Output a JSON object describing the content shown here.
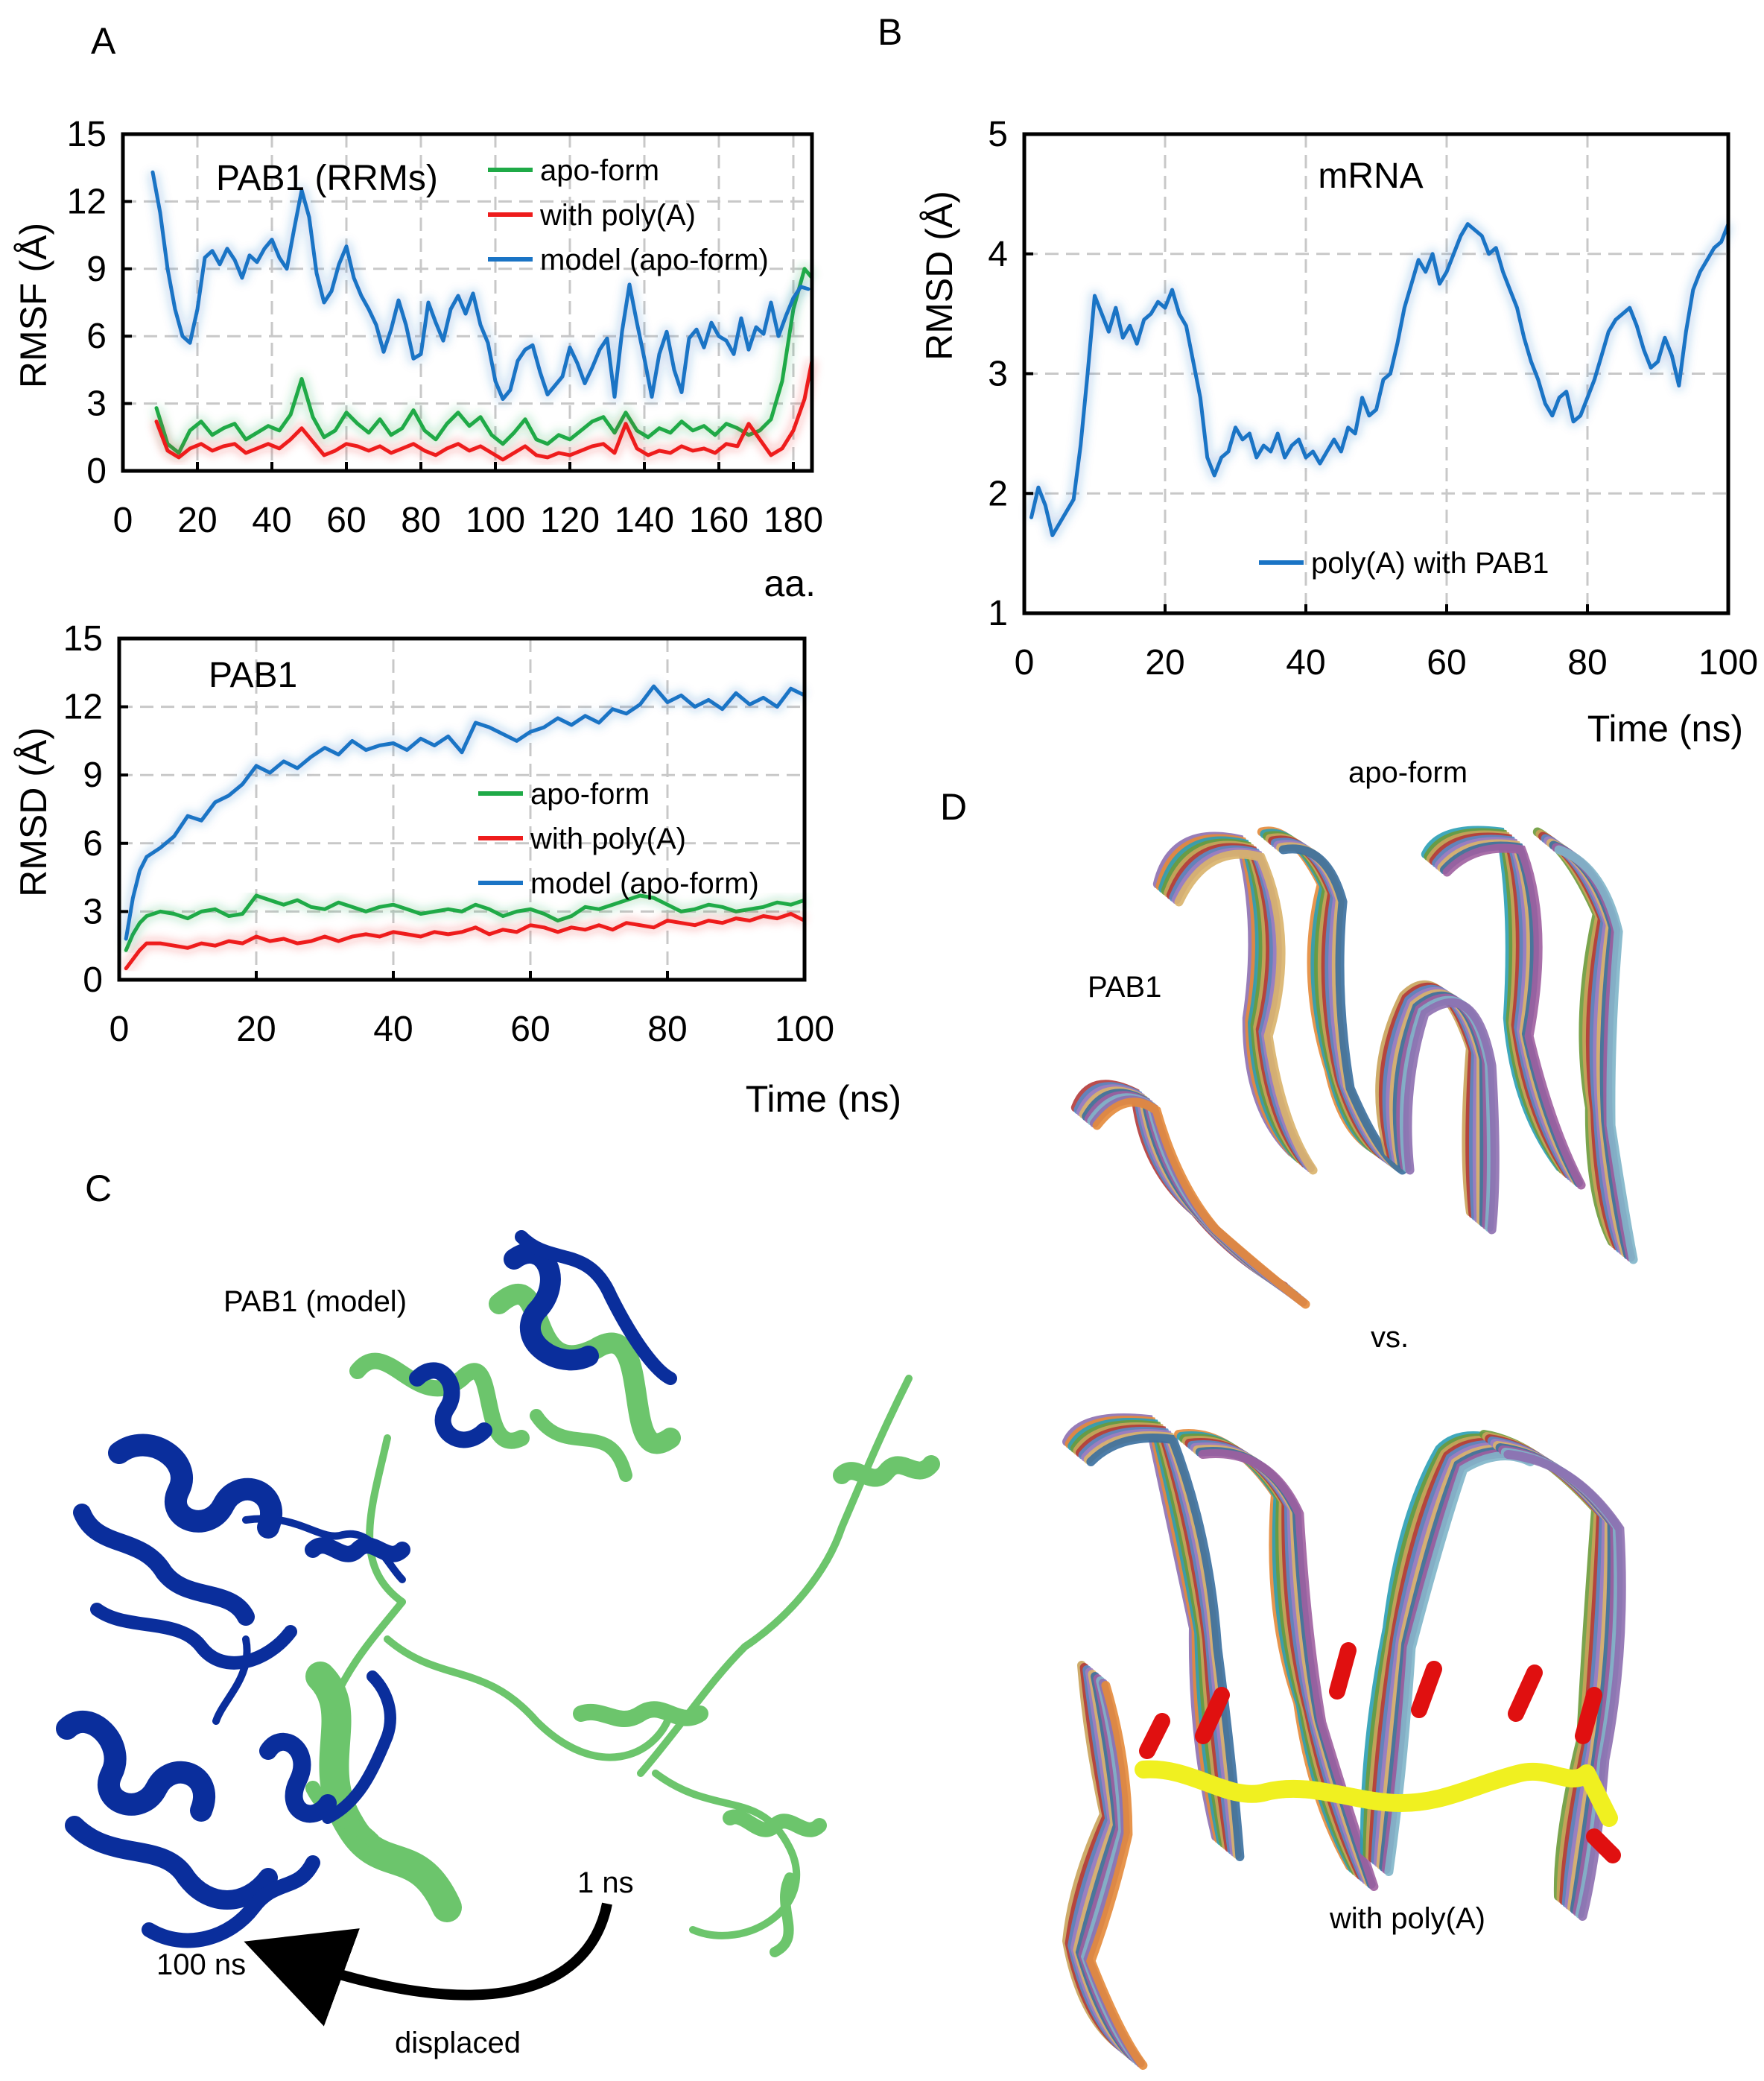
{
  "panels": {
    "A": {
      "letter": "A"
    },
    "B": {
      "letter": "B"
    },
    "C": {
      "letter": "C",
      "structure_label": "PAB1 (model)",
      "time_start": "1 ns",
      "time_end": "100 ns",
      "arrow_label": "displaced",
      "colors": {
        "start": "#6cc56c",
        "end": "#0a2e9c"
      }
    },
    "D": {
      "letter": "D",
      "top_label": "apo-form",
      "protein_label": "PAB1",
      "vs_label": "vs.",
      "bottom_label": "with poly(A)",
      "ligand_colors": {
        "backbone": "#f0f020",
        "bases": "#e01010"
      }
    }
  },
  "chart_data": [
    {
      "id": "rmsf",
      "type": "line",
      "title": "PAB1 (RRMs)",
      "xlabel": "aa.",
      "ylabel": "RMSF (Å)",
      "xlim": [
        0,
        185
      ],
      "ylim": [
        0,
        15
      ],
      "xticks": [
        0,
        20,
        40,
        60,
        80,
        100,
        120,
        140,
        160,
        180
      ],
      "yticks": [
        0,
        3,
        6,
        9,
        12,
        15
      ],
      "grid": true,
      "legend": "top-right",
      "series": [
        {
          "name": "apo-form",
          "color": "#1faa47",
          "x": [
            9,
            12,
            15,
            18,
            21,
            24,
            27,
            30,
            33,
            36,
            39,
            42,
            45,
            48,
            51,
            54,
            57,
            60,
            63,
            66,
            69,
            72,
            75,
            78,
            81,
            84,
            87,
            90,
            93,
            96,
            99,
            102,
            105,
            108,
            111,
            114,
            117,
            120,
            123,
            126,
            129,
            132,
            135,
            138,
            141,
            144,
            147,
            150,
            153,
            156,
            159,
            162,
            165,
            168,
            171,
            174,
            177,
            180,
            183,
            185
          ],
          "y": [
            2.8,
            1.2,
            0.8,
            1.8,
            2.2,
            1.6,
            1.9,
            2.1,
            1.4,
            1.7,
            2.0,
            1.8,
            2.5,
            4.1,
            2.4,
            1.5,
            1.8,
            2.6,
            2.1,
            1.7,
            2.3,
            1.6,
            1.9,
            2.7,
            1.8,
            1.4,
            2.1,
            2.6,
            2.0,
            2.4,
            1.6,
            1.2,
            1.7,
            2.3,
            1.4,
            1.2,
            1.6,
            1.4,
            1.8,
            2.2,
            2.4,
            1.7,
            2.6,
            1.8,
            1.5,
            1.9,
            1.7,
            2.2,
            1.8,
            2.0,
            1.6,
            2.1,
            1.9,
            1.6,
            1.8,
            2.3,
            4.0,
            7.2,
            9.0,
            8.6
          ]
        },
        {
          "name": "with poly(A)",
          "color": "#ee1c1c",
          "x": [
            9,
            12,
            15,
            18,
            21,
            24,
            27,
            30,
            33,
            36,
            39,
            42,
            45,
            48,
            51,
            54,
            57,
            60,
            63,
            66,
            69,
            72,
            75,
            78,
            81,
            84,
            87,
            90,
            93,
            96,
            99,
            102,
            105,
            108,
            111,
            114,
            117,
            120,
            123,
            126,
            129,
            132,
            135,
            138,
            141,
            144,
            147,
            150,
            153,
            156,
            159,
            162,
            165,
            168,
            171,
            174,
            177,
            180,
            183,
            185
          ],
          "y": [
            2.2,
            0.9,
            0.6,
            1.0,
            1.2,
            0.9,
            1.1,
            1.2,
            0.8,
            1.0,
            1.2,
            1.0,
            1.4,
            1.9,
            1.3,
            0.7,
            0.9,
            1.2,
            1.1,
            0.9,
            1.1,
            0.8,
            1.0,
            1.2,
            0.9,
            0.7,
            1.0,
            1.2,
            0.9,
            1.1,
            0.8,
            0.5,
            0.8,
            1.1,
            0.7,
            0.6,
            0.8,
            0.7,
            0.9,
            1.1,
            1.2,
            0.8,
            2.1,
            1.0,
            0.7,
            0.9,
            0.8,
            1.1,
            0.9,
            1.0,
            0.8,
            1.2,
            1.1,
            2.1,
            1.4,
            0.7,
            1.0,
            1.8,
            3.2,
            4.9
          ]
        },
        {
          "name": "model (apo-form)",
          "color": "#1a74c5",
          "x": [
            8,
            10,
            12,
            14,
            16,
            18,
            20,
            22,
            24,
            26,
            28,
            30,
            32,
            34,
            36,
            38,
            40,
            42,
            44,
            46,
            48,
            50,
            52,
            54,
            56,
            58,
            60,
            62,
            64,
            66,
            68,
            70,
            72,
            74,
            76,
            78,
            80,
            82,
            84,
            86,
            88,
            90,
            92,
            94,
            96,
            98,
            100,
            102,
            104,
            106,
            108,
            110,
            112,
            114,
            116,
            118,
            120,
            122,
            124,
            126,
            128,
            130,
            132,
            134,
            136,
            138,
            140,
            142,
            144,
            146,
            148,
            150,
            152,
            154,
            156,
            158,
            160,
            162,
            164,
            166,
            168,
            170,
            172,
            174,
            176,
            178,
            180,
            182,
            184
          ],
          "y": [
            13.3,
            11.5,
            9.0,
            7.2,
            6.0,
            5.7,
            7.2,
            9.5,
            9.8,
            9.2,
            9.9,
            9.4,
            8.6,
            9.6,
            9.3,
            9.9,
            10.3,
            9.5,
            9.0,
            10.8,
            12.5,
            11.3,
            8.8,
            7.5,
            8.0,
            9.2,
            10.0,
            8.6,
            7.8,
            7.2,
            6.5,
            5.3,
            6.3,
            7.6,
            6.5,
            5.0,
            5.2,
            7.5,
            6.6,
            5.8,
            7.2,
            7.8,
            7.0,
            7.9,
            6.5,
            5.7,
            4.0,
            3.2,
            3.6,
            4.9,
            5.4,
            5.6,
            4.4,
            3.4,
            3.8,
            4.2,
            5.5,
            4.8,
            3.9,
            4.6,
            5.4,
            5.9,
            3.3,
            6.2,
            8.3,
            6.6,
            5.0,
            3.3,
            5.2,
            6.2,
            4.5,
            3.5,
            5.9,
            6.3,
            5.5,
            6.6,
            6.0,
            5.8,
            5.2,
            6.8,
            5.4,
            6.4,
            6.1,
            7.5,
            6.0,
            6.9,
            7.7,
            8.2,
            8.1
          ]
        }
      ]
    },
    {
      "id": "rmsd-pab1",
      "type": "line",
      "title": "PAB1",
      "xlabel": "Time (ns)",
      "ylabel": "RMSD (Å)",
      "xlim": [
        0,
        100
      ],
      "ylim": [
        0,
        15
      ],
      "xticks": [
        0,
        20,
        40,
        60,
        80,
        100
      ],
      "yticks": [
        0,
        3,
        6,
        9,
        12,
        15
      ],
      "grid": true,
      "legend": "right",
      "series": [
        {
          "name": "apo-form",
          "color": "#1faa47",
          "x": [
            1,
            2,
            3,
            4,
            6,
            8,
            10,
            12,
            14,
            16,
            18,
            20,
            22,
            24,
            26,
            28,
            30,
            32,
            34,
            36,
            38,
            40,
            42,
            44,
            46,
            48,
            50,
            52,
            54,
            56,
            58,
            60,
            62,
            64,
            66,
            68,
            70,
            72,
            74,
            76,
            78,
            80,
            82,
            84,
            86,
            88,
            90,
            92,
            94,
            96,
            98,
            100
          ],
          "y": [
            1.3,
            2.0,
            2.5,
            2.8,
            3.0,
            2.9,
            2.7,
            3.0,
            3.1,
            2.8,
            2.9,
            3.7,
            3.5,
            3.3,
            3.5,
            3.2,
            3.1,
            3.4,
            3.2,
            3.0,
            3.2,
            3.3,
            3.1,
            2.9,
            3.0,
            3.1,
            3.0,
            3.3,
            3.1,
            2.8,
            3.0,
            3.1,
            2.9,
            2.6,
            2.8,
            3.2,
            3.1,
            3.3,
            3.5,
            3.7,
            3.6,
            3.3,
            3.0,
            3.1,
            3.3,
            3.2,
            3.0,
            3.1,
            3.2,
            3.4,
            3.3,
            3.5
          ]
        },
        {
          "name": "with poly(A)",
          "color": "#ee1c1c",
          "x": [
            1,
            2,
            3,
            4,
            6,
            8,
            10,
            12,
            14,
            16,
            18,
            20,
            22,
            24,
            26,
            28,
            30,
            32,
            34,
            36,
            38,
            40,
            42,
            44,
            46,
            48,
            50,
            52,
            54,
            56,
            58,
            60,
            62,
            64,
            66,
            68,
            70,
            72,
            74,
            76,
            78,
            80,
            82,
            84,
            86,
            88,
            90,
            92,
            94,
            96,
            98,
            100
          ],
          "y": [
            0.5,
            0.9,
            1.3,
            1.6,
            1.6,
            1.5,
            1.4,
            1.6,
            1.5,
            1.7,
            1.6,
            1.9,
            1.7,
            1.8,
            1.6,
            1.7,
            1.9,
            1.7,
            1.9,
            2.0,
            1.9,
            2.1,
            2.0,
            1.9,
            2.1,
            2.0,
            2.1,
            2.3,
            2.0,
            2.2,
            2.1,
            2.4,
            2.3,
            2.1,
            2.3,
            2.2,
            2.4,
            2.2,
            2.5,
            2.4,
            2.3,
            2.6,
            2.5,
            2.4,
            2.6,
            2.5,
            2.7,
            2.6,
            2.8,
            2.7,
            2.9,
            2.6
          ]
        },
        {
          "name": "model (apo-form)",
          "color": "#1a74c5",
          "x": [
            1,
            2,
            3,
            4,
            6,
            8,
            10,
            12,
            14,
            16,
            18,
            20,
            22,
            24,
            26,
            28,
            30,
            32,
            34,
            36,
            38,
            40,
            42,
            44,
            46,
            48,
            50,
            52,
            54,
            56,
            58,
            60,
            62,
            64,
            66,
            68,
            70,
            72,
            74,
            76,
            78,
            80,
            82,
            84,
            86,
            88,
            90,
            92,
            94,
            96,
            98,
            100
          ],
          "y": [
            1.8,
            3.6,
            4.8,
            5.4,
            5.8,
            6.3,
            7.2,
            7.0,
            7.8,
            8.1,
            8.6,
            9.4,
            9.1,
            9.6,
            9.3,
            9.8,
            10.2,
            9.9,
            10.5,
            10.1,
            10.3,
            10.4,
            10.1,
            10.6,
            10.3,
            10.7,
            10.0,
            11.3,
            11.1,
            10.8,
            10.5,
            10.9,
            11.1,
            11.5,
            11.2,
            11.6,
            11.3,
            11.9,
            11.7,
            12.1,
            12.9,
            12.2,
            12.5,
            12.0,
            12.3,
            11.9,
            12.6,
            12.1,
            12.4,
            12.0,
            12.8,
            12.5
          ]
        }
      ]
    },
    {
      "id": "rmsd-mrna",
      "type": "line",
      "title": "mRNA",
      "xlabel": "Time (ns)",
      "ylabel": "RMSD (Å)",
      "xlim": [
        0,
        100
      ],
      "ylim": [
        1,
        5
      ],
      "xticks": [
        0,
        20,
        40,
        60,
        80,
        100
      ],
      "yticks": [
        1,
        2,
        3,
        4,
        5
      ],
      "grid": true,
      "legend": "bottom-center",
      "series": [
        {
          "name": "poly(A) with PAB1",
          "color": "#1a74c5",
          "x": [
            1,
            2,
            3,
            4,
            5,
            6,
            7,
            8,
            9,
            10,
            11,
            12,
            13,
            14,
            15,
            16,
            17,
            18,
            19,
            20,
            21,
            22,
            23,
            24,
            25,
            26,
            27,
            28,
            29,
            30,
            31,
            32,
            33,
            34,
            35,
            36,
            37,
            38,
            39,
            40,
            41,
            42,
            43,
            44,
            45,
            46,
            47,
            48,
            49,
            50,
            51,
            52,
            53,
            54,
            55,
            56,
            57,
            58,
            59,
            60,
            61,
            62,
            63,
            64,
            65,
            66,
            67,
            68,
            69,
            70,
            71,
            72,
            73,
            74,
            75,
            76,
            77,
            78,
            79,
            80,
            81,
            82,
            83,
            84,
            85,
            86,
            87,
            88,
            89,
            90,
            91,
            92,
            93,
            94,
            95,
            96,
            97,
            98,
            99,
            100
          ],
          "y": [
            1.8,
            2.05,
            1.9,
            1.65,
            1.75,
            1.85,
            1.95,
            2.4,
            3.0,
            3.65,
            3.5,
            3.35,
            3.55,
            3.3,
            3.4,
            3.25,
            3.45,
            3.5,
            3.6,
            3.55,
            3.7,
            3.5,
            3.4,
            3.1,
            2.8,
            2.3,
            2.15,
            2.3,
            2.35,
            2.55,
            2.45,
            2.5,
            2.3,
            2.4,
            2.35,
            2.5,
            2.3,
            2.4,
            2.45,
            2.3,
            2.35,
            2.25,
            2.35,
            2.45,
            2.35,
            2.55,
            2.5,
            2.8,
            2.65,
            2.7,
            2.95,
            3.0,
            3.25,
            3.55,
            3.75,
            3.95,
            3.85,
            4.0,
            3.75,
            3.85,
            4.0,
            4.15,
            4.25,
            4.2,
            4.15,
            4.0,
            4.05,
            3.85,
            3.7,
            3.55,
            3.3,
            3.1,
            2.95,
            2.75,
            2.65,
            2.8,
            2.85,
            2.6,
            2.65,
            2.8,
            2.95,
            3.15,
            3.35,
            3.45,
            3.5,
            3.55,
            3.4,
            3.2,
            3.05,
            3.1,
            3.3,
            3.15,
            2.9,
            3.35,
            3.7,
            3.85,
            3.95,
            4.05,
            4.1,
            4.25
          ]
        }
      ]
    }
  ]
}
